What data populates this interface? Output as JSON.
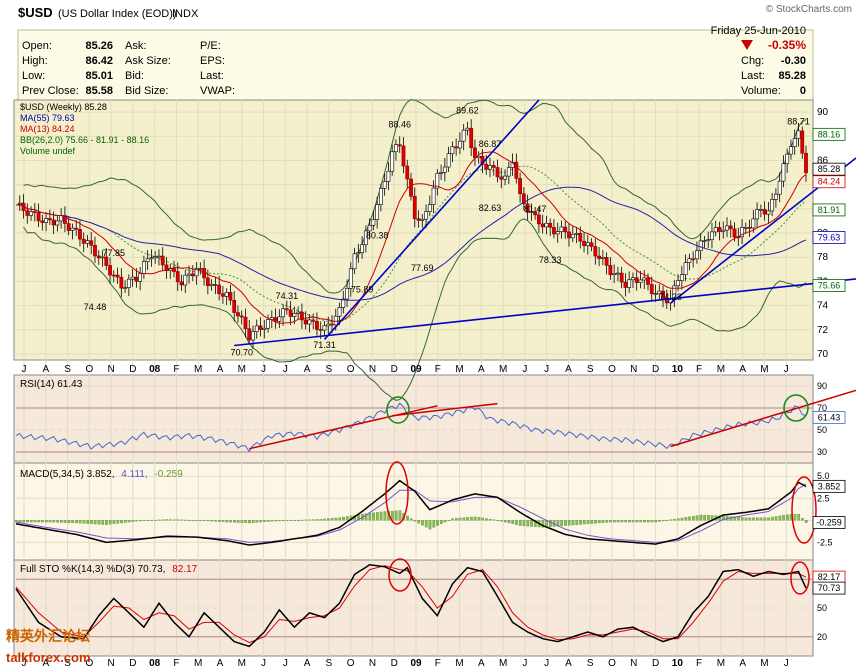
{
  "header": {
    "symbol": "$USD",
    "name": "(US Dollar Index (EOD))",
    "exchange": "INDX",
    "credit": "© StockCharts.com",
    "date": "Friday  25-Jun-2010",
    "pct_change": "-0.35%",
    "open_label": "Open:",
    "open": "85.26",
    "high_label": "High:",
    "high": "86.42",
    "low_label": "Low:",
    "low": "85.01",
    "prev_label": "Prev Close:",
    "prev": "85.58",
    "ask_label": "Ask:",
    "asksize_label": "Ask Size:",
    "bid_label": "Bid:",
    "bidsize_label": "Bid Size:",
    "pe_label": "P/E:",
    "eps_label": "EPS:",
    "last_label": "Last:",
    "vwap_label": "VWAP:",
    "chg_label": "Chg:",
    "chg": "-0.30",
    "last2_label": "Last:",
    "last2": "85.28",
    "vol_label": "Volume:",
    "vol": "0",
    "down_color": "#cc0000"
  },
  "watermark": {
    "cn": "精英外汇论坛",
    "en": "talkforex.com"
  },
  "chart_data": [
    {
      "type": "candlestick",
      "panel": "price",
      "legend": [
        "$USD (Weekly) 85.28",
        "MA(55) 79.63",
        "MA(13) 84.24",
        "BB(26,2.0) 75.66 - 81.91 - 88.16",
        "Volume undef"
      ],
      "legend_colors": [
        "#000000",
        "#0000aa",
        "#cc0000",
        "#006600",
        "#006600"
      ],
      "x_labels": [
        "J",
        "A",
        "S",
        "O",
        "N",
        "D",
        "08",
        "F",
        "M",
        "A",
        "M",
        "J",
        "J",
        "A",
        "S",
        "O",
        "N",
        "D",
        "09",
        "F",
        "M",
        "A",
        "M",
        "J",
        "J",
        "A",
        "S",
        "O",
        "N",
        "D",
        "10",
        "F",
        "M",
        "A",
        "M",
        "J"
      ],
      "y_ticks": [
        70,
        72,
        74,
        76,
        78,
        80,
        82,
        84,
        86,
        88,
        90
      ],
      "ylim": [
        69.5,
        91
      ],
      "close_path": [
        [
          0,
          82.3
        ],
        [
          4,
          81.6
        ],
        [
          8,
          80.9
        ],
        [
          12,
          81.1
        ],
        [
          16,
          80.0
        ],
        [
          20,
          78.8
        ],
        [
          24,
          77.3
        ],
        [
          28,
          75.6
        ],
        [
          32,
          76.3
        ],
        [
          36,
          78.3
        ],
        [
          40,
          77.2
        ],
        [
          44,
          75.9
        ],
        [
          48,
          77.1
        ],
        [
          52,
          75.6
        ],
        [
          56,
          74.8
        ],
        [
          60,
          72.7
        ],
        [
          62,
          71.5
        ],
        [
          64,
          72.0
        ],
        [
          68,
          72.8
        ],
        [
          72,
          73.6
        ],
        [
          74,
          73.3
        ],
        [
          78,
          72.6
        ],
        [
          82,
          72.0
        ],
        [
          86,
          73.5
        ],
        [
          90,
          78.0
        ],
        [
          94,
          80.5
        ],
        [
          98,
          84.3
        ],
        [
          100,
          86.6
        ],
        [
          102,
          87.4
        ],
        [
          104,
          84.2
        ],
        [
          106,
          81.5
        ],
        [
          108,
          80.8
        ],
        [
          112,
          84.6
        ],
        [
          116,
          86.9
        ],
        [
          120,
          88.6
        ],
        [
          122,
          86.2
        ],
        [
          126,
          85.4
        ],
        [
          130,
          84.4
        ],
        [
          132,
          86.2
        ],
        [
          134,
          82.9
        ],
        [
          138,
          81.2
        ],
        [
          142,
          80.3
        ],
        [
          146,
          80.1
        ],
        [
          150,
          79.5
        ],
        [
          154,
          78.4
        ],
        [
          158,
          76.9
        ],
        [
          162,
          75.8
        ],
        [
          166,
          76.3
        ],
        [
          170,
          75.0
        ],
        [
          174,
          74.4
        ],
        [
          176,
          76.3
        ],
        [
          180,
          78.2
        ],
        [
          184,
          79.8
        ],
        [
          188,
          80.5
        ],
        [
          192,
          79.8
        ],
        [
          196,
          81.1
        ],
        [
          198,
          82.1
        ],
        [
          200,
          81.6
        ],
        [
          204,
          85.4
        ],
        [
          206,
          87.5
        ],
        [
          208,
          88.1
        ],
        [
          210,
          85.3
        ]
      ],
      "labels": [
        {
          "i": 26,
          "v": 77.85,
          "text": "77.85"
        },
        {
          "i": 21,
          "v": 74.48,
          "text": "74.48"
        },
        {
          "i": 60,
          "v": 70.7,
          "text": "70.70"
        },
        {
          "i": 72,
          "v": 74.31,
          "text": "74.31"
        },
        {
          "i": 82,
          "v": 71.31,
          "text": "71.31"
        },
        {
          "i": 92,
          "v": 75.89,
          "text": "75.89"
        },
        {
          "i": 96,
          "v": 80.38,
          "text": "80.38"
        },
        {
          "i": 102,
          "v": 88.46,
          "text": "88.46"
        },
        {
          "i": 108,
          "v": 77.69,
          "text": "77.69"
        },
        {
          "i": 120,
          "v": 89.62,
          "text": "89.62"
        },
        {
          "i": 126,
          "v": 86.87,
          "text": "86.87"
        },
        {
          "i": 126,
          "v": 82.63,
          "text": "82.63"
        },
        {
          "i": 138,
          "v": 81.47,
          "text": "81.47"
        },
        {
          "i": 142,
          "v": 78.33,
          "text": "78.33"
        },
        {
          "i": 174,
          "v": 74.23,
          "text": "74.23"
        },
        {
          "i": 208,
          "v": 88.71,
          "text": "88.71"
        }
      ],
      "right_labels": [
        {
          "v": 88.16,
          "text": "88.16",
          "color": "#006600"
        },
        {
          "v": 85.28,
          "text": "85.28",
          "color": "#000000"
        },
        {
          "v": 84.24,
          "text": "84.24",
          "color": "#cc0000"
        },
        {
          "v": 81.91,
          "text": "81.91",
          "color": "#006600"
        },
        {
          "v": 79.63,
          "text": "79.63",
          "color": "#0000aa"
        },
        {
          "v": 75.66,
          "text": "75.66",
          "color": "#006600"
        }
      ]
    },
    {
      "type": "line",
      "panel": "rsi",
      "legend": "RSI(14) 61.43",
      "y_ticks": [
        30,
        50,
        70,
        90
      ],
      "ylim": [
        20,
        100
      ],
      "right_label": "61.43",
      "series": [
        [
          0,
          45
        ],
        [
          10,
          42
        ],
        [
          20,
          35
        ],
        [
          28,
          38
        ],
        [
          34,
          46
        ],
        [
          40,
          43
        ],
        [
          46,
          45
        ],
        [
          52,
          42
        ],
        [
          58,
          37
        ],
        [
          62,
          33
        ],
        [
          68,
          45
        ],
        [
          74,
          47
        ],
        [
          80,
          44
        ],
        [
          86,
          50
        ],
        [
          92,
          58
        ],
        [
          98,
          68
        ],
        [
          102,
          73
        ],
        [
          106,
          61
        ],
        [
          112,
          62
        ],
        [
          118,
          67
        ],
        [
          122,
          71
        ],
        [
          126,
          60
        ],
        [
          132,
          56
        ],
        [
          138,
          50
        ],
        [
          144,
          48
        ],
        [
          150,
          45
        ],
        [
          156,
          42
        ],
        [
          162,
          41
        ],
        [
          168,
          38
        ],
        [
          174,
          35
        ],
        [
          180,
          45
        ],
        [
          186,
          50
        ],
        [
          192,
          55
        ],
        [
          198,
          57
        ],
        [
          202,
          60
        ],
        [
          206,
          68
        ],
        [
          208,
          71
        ],
        [
          210,
          61
        ]
      ]
    },
    {
      "type": "line",
      "panel": "macd",
      "legend_main": "MACD(5,34,5) 3.852,",
      "legend_signal": "4.111,",
      "legend_hist": "-0.259",
      "y_ticks": [
        -2.5,
        0,
        2.5,
        5.0
      ],
      "ylim": [
        -4.5,
        6.5
      ],
      "right_labels": [
        "3.852",
        "-0.259"
      ],
      "macd": [
        [
          0,
          -0.4
        ],
        [
          8,
          -1.0
        ],
        [
          16,
          -1.6
        ],
        [
          24,
          -2.5
        ],
        [
          32,
          -2.2
        ],
        [
          40,
          -1.8
        ],
        [
          48,
          -1.9
        ],
        [
          56,
          -2.3
        ],
        [
          62,
          -2.8
        ],
        [
          68,
          -2.5
        ],
        [
          74,
          -2.1
        ],
        [
          80,
          -1.7
        ],
        [
          86,
          -0.8
        ],
        [
          92,
          1.0
        ],
        [
          98,
          3.0
        ],
        [
          102,
          4.5
        ],
        [
          106,
          3.3
        ],
        [
          110,
          1.2
        ],
        [
          116,
          2.3
        ],
        [
          122,
          3.0
        ],
        [
          128,
          2.6
        ],
        [
          134,
          0.9
        ],
        [
          140,
          -0.6
        ],
        [
          146,
          -1.6
        ],
        [
          152,
          -2.1
        ],
        [
          158,
          -2.3
        ],
        [
          164,
          -2.5
        ],
        [
          170,
          -2.7
        ],
        [
          176,
          -2.1
        ],
        [
          182,
          -0.6
        ],
        [
          188,
          0.6
        ],
        [
          194,
          0.9
        ],
        [
          200,
          1.3
        ],
        [
          206,
          3.2
        ],
        [
          208,
          4.3
        ],
        [
          210,
          3.85
        ]
      ],
      "signal": [
        [
          0,
          -0.2
        ],
        [
          8,
          -0.8
        ],
        [
          16,
          -1.3
        ],
        [
          24,
          -2.0
        ],
        [
          32,
          -2.1
        ],
        [
          40,
          -1.9
        ],
        [
          48,
          -1.9
        ],
        [
          56,
          -2.1
        ],
        [
          62,
          -2.5
        ],
        [
          68,
          -2.4
        ],
        [
          74,
          -2.1
        ],
        [
          80,
          -1.8
        ],
        [
          86,
          -1.1
        ],
        [
          92,
          0.3
        ],
        [
          98,
          2.0
        ],
        [
          102,
          3.4
        ],
        [
          106,
          3.4
        ],
        [
          110,
          2.2
        ],
        [
          116,
          2.1
        ],
        [
          122,
          2.6
        ],
        [
          128,
          2.6
        ],
        [
          134,
          1.5
        ],
        [
          140,
          0.2
        ],
        [
          146,
          -1.0
        ],
        [
          152,
          -1.7
        ],
        [
          158,
          -2.1
        ],
        [
          164,
          -2.3
        ],
        [
          170,
          -2.5
        ],
        [
          176,
          -2.3
        ],
        [
          182,
          -1.2
        ],
        [
          188,
          0.1
        ],
        [
          194,
          0.6
        ],
        [
          200,
          1.0
        ],
        [
          206,
          2.5
        ],
        [
          208,
          3.6
        ],
        [
          210,
          4.11
        ]
      ]
    },
    {
      "type": "line",
      "panel": "stochastic",
      "legend_k": "Full STO %K(14,3) %D(3) 70.73,",
      "legend_d": "82.17",
      "y_ticks": [
        20,
        50,
        80
      ],
      "ylim": [
        0,
        100
      ],
      "right_labels": [
        "82.17",
        "70.73"
      ],
      "k": [
        [
          0,
          70
        ],
        [
          6,
          35
        ],
        [
          12,
          20
        ],
        [
          18,
          18
        ],
        [
          22,
          42
        ],
        [
          26,
          60
        ],
        [
          30,
          45
        ],
        [
          34,
          30
        ],
        [
          38,
          55
        ],
        [
          42,
          35
        ],
        [
          46,
          20
        ],
        [
          50,
          45
        ],
        [
          54,
          30
        ],
        [
          58,
          15
        ],
        [
          62,
          10
        ],
        [
          66,
          25
        ],
        [
          70,
          48
        ],
        [
          74,
          30
        ],
        [
          78,
          45
        ],
        [
          82,
          40
        ],
        [
          86,
          55
        ],
        [
          90,
          85
        ],
        [
          94,
          95
        ],
        [
          98,
          93
        ],
        [
          102,
          86
        ],
        [
          104,
          92
        ],
        [
          108,
          60
        ],
        [
          112,
          42
        ],
        [
          116,
          75
        ],
        [
          120,
          92
        ],
        [
          124,
          88
        ],
        [
          128,
          62
        ],
        [
          132,
          35
        ],
        [
          136,
          25
        ],
        [
          140,
          18
        ],
        [
          144,
          15
        ],
        [
          148,
          20
        ],
        [
          152,
          25
        ],
        [
          156,
          20
        ],
        [
          160,
          28
        ],
        [
          164,
          30
        ],
        [
          168,
          22
        ],
        [
          172,
          15
        ],
        [
          176,
          20
        ],
        [
          180,
          45
        ],
        [
          184,
          62
        ],
        [
          188,
          88
        ],
        [
          192,
          90
        ],
        [
          196,
          83
        ],
        [
          200,
          88
        ],
        [
          204,
          85
        ],
        [
          208,
          88
        ],
        [
          210,
          70.7
        ]
      ],
      "d": [
        [
          0,
          72
        ],
        [
          6,
          45
        ],
        [
          12,
          25
        ],
        [
          18,
          20
        ],
        [
          22,
          35
        ],
        [
          26,
          52
        ],
        [
          30,
          50
        ],
        [
          34,
          38
        ],
        [
          38,
          45
        ],
        [
          42,
          42
        ],
        [
          46,
          28
        ],
        [
          50,
          35
        ],
        [
          54,
          35
        ],
        [
          58,
          22
        ],
        [
          62,
          14
        ],
        [
          66,
          20
        ],
        [
          70,
          38
        ],
        [
          74,
          36
        ],
        [
          78,
          40
        ],
        [
          82,
          42
        ],
        [
          86,
          50
        ],
        [
          90,
          73
        ],
        [
          94,
          90
        ],
        [
          98,
          94
        ],
        [
          102,
          90
        ],
        [
          104,
          89
        ],
        [
          108,
          72
        ],
        [
          112,
          50
        ],
        [
          116,
          62
        ],
        [
          120,
          85
        ],
        [
          124,
          90
        ],
        [
          128,
          72
        ],
        [
          132,
          45
        ],
        [
          136,
          30
        ],
        [
          140,
          22
        ],
        [
          144,
          17
        ],
        [
          148,
          18
        ],
        [
          152,
          22
        ],
        [
          156,
          22
        ],
        [
          160,
          25
        ],
        [
          164,
          28
        ],
        [
          168,
          25
        ],
        [
          172,
          18
        ],
        [
          176,
          18
        ],
        [
          180,
          35
        ],
        [
          184,
          55
        ],
        [
          188,
          78
        ],
        [
          192,
          88
        ],
        [
          196,
          86
        ],
        [
          200,
          86
        ],
        [
          204,
          86
        ],
        [
          208,
          86
        ],
        [
          210,
          82.2
        ]
      ]
    }
  ]
}
